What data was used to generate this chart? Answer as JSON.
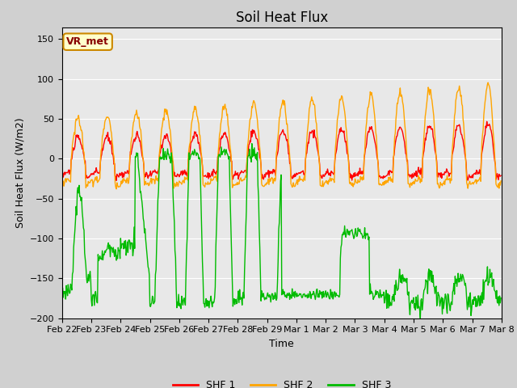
{
  "title": "Soil Heat Flux",
  "xlabel": "Time",
  "ylabel": "Soil Heat Flux (W/m2)",
  "ylim": [
    -200,
    165
  ],
  "yticks": [
    -200,
    -150,
    -100,
    -50,
    0,
    50,
    100,
    150
  ],
  "legend_labels": [
    "SHF 1",
    "SHF 2",
    "SHF 3"
  ],
  "legend_colors": [
    "#ff0000",
    "#ffa500",
    "#00bb00"
  ],
  "annotation_text": "VR_met",
  "annotation_bbox_facecolor": "#ffffcc",
  "annotation_bbox_edgecolor": "#cc8800",
  "fig_facecolor": "#d0d0d0",
  "axes_facecolor": "#e8e8e8",
  "grid_color": "#ffffff",
  "title_fontsize": 12,
  "axis_label_fontsize": 9,
  "tick_fontsize": 8,
  "line_width": 1.0,
  "shf1_color": "#ff0000",
  "shf2_color": "#ffa500",
  "shf3_color": "#00bb00",
  "xtick_labels": [
    "Feb 22",
    "Feb 23",
    "Feb 24",
    "Feb 25",
    "Feb 26",
    "Feb 27",
    "Feb 28",
    "Feb 29",
    "Mar 1",
    "Mar 2",
    "Mar 3",
    "Mar 4",
    "Mar 5",
    "Mar 6",
    "Mar 7",
    "Mar 8"
  ],
  "xtick_positions": [
    0,
    1,
    2,
    3,
    4,
    5,
    6,
    7,
    8,
    9,
    10,
    11,
    12,
    13,
    14,
    15
  ]
}
